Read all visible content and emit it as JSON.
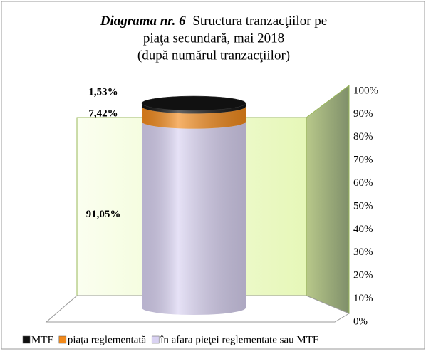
{
  "chart_data": {
    "type": "stacked-cylinder",
    "title": {
      "label": "Diagrama nr. 6",
      "lines": [
        "Structura tranzacţiilor pe",
        "piaţa secundară,  mai 2018",
        "(după numărul tranzacţiilor)"
      ]
    },
    "series": [
      {
        "name": "MTF",
        "color": "#111111",
        "values": [
          1.53
        ],
        "value_labels": [
          "1,53%"
        ]
      },
      {
        "name": "piaţa reglementată",
        "color": "#f28a1c",
        "values": [
          7.42
        ],
        "value_labels": [
          "7,42%"
        ]
      },
      {
        "name": "în afara pieţei reglementate sau MTF",
        "color": "#d9d2f2",
        "values": [
          91.05
        ],
        "value_labels": [
          "91,05%"
        ]
      }
    ],
    "ylim": [
      0,
      100
    ],
    "yticks": [
      {
        "value": 0,
        "label": "0%"
      },
      {
        "value": 10,
        "label": "10%"
      },
      {
        "value": 20,
        "label": "20%"
      },
      {
        "value": 30,
        "label": "30%"
      },
      {
        "value": 40,
        "label": "40%"
      },
      {
        "value": 50,
        "label": "50%"
      },
      {
        "value": 60,
        "label": "60%"
      },
      {
        "value": 70,
        "label": "70%"
      },
      {
        "value": 80,
        "label": "80%"
      },
      {
        "value": 90,
        "label": "90%"
      },
      {
        "value": 100,
        "label": "100%"
      }
    ],
    "legend": "bottom"
  }
}
